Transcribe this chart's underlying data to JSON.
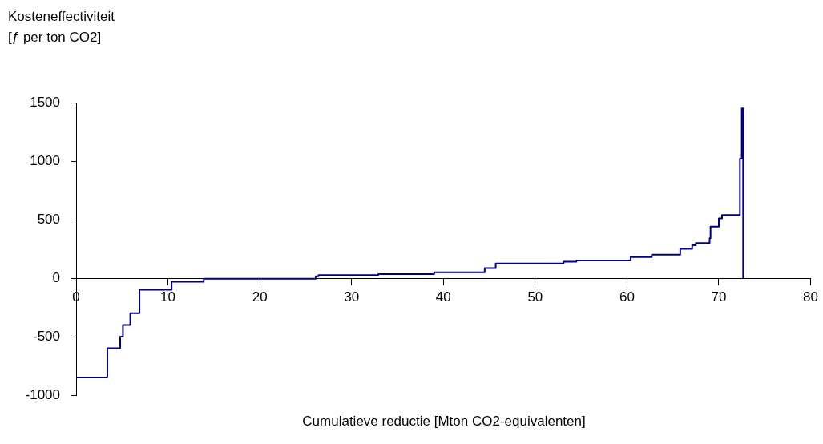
{
  "chart_data": {
    "type": "step",
    "ylabel": "Kosteneffectiviteit\n[ƒ per ton CO2]",
    "xlabel": "Cumulatieve reductie [Mton CO2-equivalenten]",
    "x": [
      0,
      3.4,
      4.8,
      5.1,
      5.9,
      6.9,
      10.4,
      13.9,
      26.1,
      26.4,
      32.9,
      39.0,
      44.5,
      45.7,
      53.1,
      54.5,
      60.4,
      62.7,
      65.8,
      67.1,
      67.5,
      69.0,
      69.1,
      70.0,
      70.35,
      72.3,
      72.5,
      72.65
    ],
    "values": [
      -850,
      -600,
      -500,
      -400,
      -300,
      -100,
      -30,
      -5,
      15,
      25,
      35,
      50,
      85,
      125,
      140,
      150,
      180,
      200,
      250,
      280,
      300,
      340,
      440,
      510,
      540,
      1020,
      1450,
      0
    ],
    "color": "#000080",
    "xlim": [
      0,
      80
    ],
    "xticks": [
      0,
      10,
      20,
      30,
      40,
      50,
      60,
      70,
      80
    ],
    "ylim": [
      -1000,
      1500
    ],
    "yticks": [
      -1000,
      -500,
      0,
      500,
      1000,
      1500
    ],
    "grid": false,
    "legend": false
  }
}
